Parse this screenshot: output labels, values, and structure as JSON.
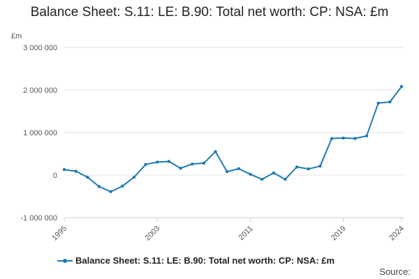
{
  "chart_data": {
    "type": "line",
    "title": "Balance Sheet: S.11: LE: B.90: Total net worth: CP: NSA: £m",
    "y_unit": "£m",
    "xlabel": "",
    "ylabel": "",
    "x": [
      1995,
      1996,
      1997,
      1998,
      1999,
      2000,
      2001,
      2002,
      2003,
      2004,
      2005,
      2006,
      2007,
      2008,
      2009,
      2010,
      2011,
      2012,
      2013,
      2014,
      2015,
      2016,
      2017,
      2018,
      2019,
      2020,
      2021,
      2022,
      2023,
      2024
    ],
    "series": [
      {
        "name": "Balance Sheet: S.11: LE: B.90: Total net worth: CP: NSA: £m",
        "color": "#1f7ab3",
        "values": [
          130000,
          90000,
          -50000,
          -270000,
          -390000,
          -260000,
          -50000,
          250000,
          305000,
          320000,
          160000,
          260000,
          280000,
          550000,
          80000,
          150000,
          20000,
          -100000,
          50000,
          -100000,
          190000,
          145000,
          210000,
          860000,
          870000,
          860000,
          920000,
          1690000,
          1720000,
          2080000
        ]
      }
    ],
    "x_ticks": [
      1995,
      2003,
      2011,
      2019,
      2024
    ],
    "x_tick_labels": [
      "1995",
      "2003",
      "2011",
      "2019",
      "2024"
    ],
    "y_ticks": [
      -1000000,
      0,
      1000000,
      2000000,
      3000000
    ],
    "y_tick_labels": [
      "-1 000 000",
      "0",
      "1 000 000",
      "2 000 000",
      "3 000 000"
    ],
    "ylim": [
      -1000000,
      3000000
    ],
    "xlim": [
      1995,
      2024
    ],
    "grid": true,
    "legend": "bottom"
  },
  "footer": {
    "source_label": "Source:"
  }
}
